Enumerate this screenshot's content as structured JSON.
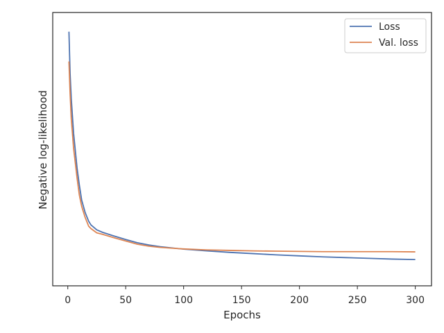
{
  "chart_data": {
    "type": "line",
    "xlabel": "Epochs",
    "ylabel": "Negative log-likelihood",
    "xlim": [
      -13,
      314
    ],
    "ylim": [
      0.0,
      1.0
    ],
    "y_tick_labels_shown": false,
    "x_ticks": [
      0,
      50,
      100,
      150,
      200,
      250,
      300
    ],
    "grid": false,
    "legend": "top-right",
    "series": [
      {
        "name": "Loss",
        "color": "#4c72b0",
        "points": [
          [
            1,
            0.97
          ],
          [
            2,
            0.8
          ],
          [
            3,
            0.7
          ],
          [
            5,
            0.56
          ],
          [
            8,
            0.42
          ],
          [
            10,
            0.35
          ],
          [
            12,
            0.29
          ],
          [
            15,
            0.24
          ],
          [
            18,
            0.205
          ],
          [
            20,
            0.19
          ],
          [
            25,
            0.17
          ],
          [
            30,
            0.16
          ],
          [
            40,
            0.145
          ],
          [
            50,
            0.131
          ],
          [
            60,
            0.118
          ],
          [
            70,
            0.109
          ],
          [
            80,
            0.102
          ],
          [
            90,
            0.097
          ],
          [
            100,
            0.092
          ],
          [
            120,
            0.085
          ],
          [
            140,
            0.079
          ],
          [
            160,
            0.074
          ],
          [
            180,
            0.069
          ],
          [
            200,
            0.065
          ],
          [
            220,
            0.061
          ],
          [
            240,
            0.058
          ],
          [
            260,
            0.055
          ],
          [
            280,
            0.052
          ],
          [
            300,
            0.05
          ]
        ]
      },
      {
        "name": "Val. loss",
        "color": "#dd8452",
        "points": [
          [
            1,
            0.85
          ],
          [
            2,
            0.72
          ],
          [
            3,
            0.62
          ],
          [
            5,
            0.5
          ],
          [
            8,
            0.38
          ],
          [
            10,
            0.31
          ],
          [
            12,
            0.265
          ],
          [
            15,
            0.22
          ],
          [
            18,
            0.185
          ],
          [
            20,
            0.175
          ],
          [
            25,
            0.158
          ],
          [
            30,
            0.152
          ],
          [
            40,
            0.138
          ],
          [
            50,
            0.125
          ],
          [
            60,
            0.112
          ],
          [
            70,
            0.104
          ],
          [
            80,
            0.099
          ],
          [
            90,
            0.096
          ],
          [
            100,
            0.093
          ],
          [
            120,
            0.089
          ],
          [
            140,
            0.087
          ],
          [
            160,
            0.085
          ],
          [
            180,
            0.084
          ],
          [
            200,
            0.083
          ],
          [
            220,
            0.082
          ],
          [
            240,
            0.082
          ],
          [
            260,
            0.082
          ],
          [
            280,
            0.082
          ],
          [
            300,
            0.081
          ]
        ]
      }
    ]
  }
}
